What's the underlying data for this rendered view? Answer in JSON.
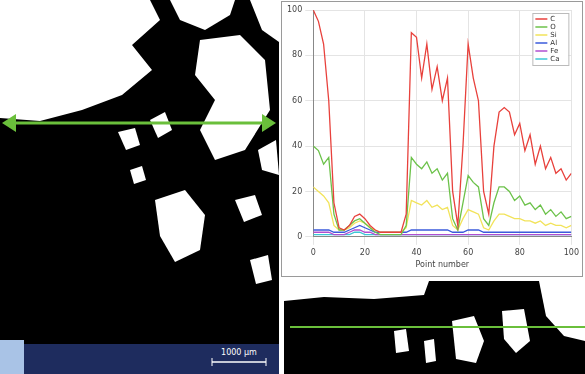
{
  "chart_data": {
    "type": "line",
    "xlabel": "Point number",
    "x": [
      0,
      2,
      4,
      6,
      8,
      10,
      12,
      14,
      16,
      18,
      20,
      22,
      24,
      26,
      28,
      30,
      32,
      34,
      36,
      38,
      40,
      42,
      44,
      46,
      48,
      50,
      52,
      54,
      56,
      58,
      60,
      62,
      64,
      66,
      68,
      70,
      72,
      74,
      76,
      78,
      80,
      82,
      84,
      86,
      88,
      90,
      92,
      94,
      96,
      98,
      100
    ],
    "series": [
      {
        "name": "C",
        "color": "#e8413c",
        "values": [
          100,
          95,
          85,
          60,
          15,
          4,
          3,
          5,
          9,
          10,
          8,
          5,
          3,
          2,
          2,
          2,
          2,
          2,
          10,
          90,
          88,
          70,
          85,
          65,
          75,
          60,
          70,
          20,
          5,
          40,
          85,
          70,
          60,
          20,
          10,
          40,
          55,
          57,
          55,
          45,
          50,
          38,
          45,
          32,
          40,
          30,
          35,
          28,
          30,
          25,
          28
        ]
      },
      {
        "name": "O",
        "color": "#6cc24a",
        "values": [
          40,
          38,
          32,
          35,
          10,
          3,
          3,
          5,
          7,
          8,
          6,
          4,
          2,
          1,
          1,
          1,
          1,
          1,
          5,
          35,
          32,
          30,
          33,
          28,
          30,
          25,
          28,
          8,
          3,
          15,
          27,
          24,
          22,
          8,
          5,
          15,
          22,
          22,
          20,
          16,
          18,
          14,
          15,
          12,
          14,
          10,
          12,
          9,
          11,
          8,
          9
        ]
      },
      {
        "name": "Si",
        "color": "#f2e35a",
        "values": [
          22,
          20,
          18,
          15,
          5,
          3,
          3,
          4,
          6,
          7,
          6,
          4,
          3,
          2,
          2,
          2,
          2,
          2,
          4,
          16,
          15,
          14,
          16,
          13,
          14,
          12,
          13,
          5,
          3,
          8,
          12,
          11,
          10,
          4,
          3,
          7,
          10,
          10,
          9,
          8,
          8,
          7,
          7,
          6,
          7,
          5,
          6,
          5,
          5,
          4,
          5
        ]
      },
      {
        "name": "Al",
        "color": "#3b5bdb",
        "values": [
          3,
          3,
          3,
          3,
          2,
          2,
          2,
          3,
          4,
          5,
          4,
          3,
          2,
          2,
          2,
          2,
          2,
          2,
          2,
          3,
          3,
          3,
          3,
          3,
          3,
          3,
          3,
          2,
          2,
          2,
          3,
          3,
          3,
          2,
          2,
          2,
          2,
          2,
          2,
          2,
          2,
          2,
          2,
          2,
          2,
          2,
          2,
          2,
          2,
          2,
          2
        ]
      },
      {
        "name": "Fe",
        "color": "#b04fd0",
        "values": [
          2,
          2,
          2,
          2,
          1,
          1,
          1,
          2,
          3,
          3,
          2,
          2,
          1,
          1,
          1,
          1,
          1,
          1,
          1,
          1,
          1,
          1,
          1,
          1,
          1,
          1,
          1,
          1,
          1,
          1,
          1,
          1,
          1,
          1,
          1,
          1,
          1,
          1,
          1,
          1,
          1,
          1,
          1,
          1,
          1,
          1,
          1,
          1,
          1,
          1,
          1
        ]
      },
      {
        "name": "Ca",
        "color": "#3cc7d6",
        "values": [
          1,
          1,
          1,
          1,
          1,
          1,
          1,
          1,
          2,
          2,
          1,
          1,
          1,
          1,
          1,
          1,
          1,
          1,
          1,
          1,
          1,
          1,
          1,
          1,
          1,
          1,
          1,
          1,
          1,
          1,
          1,
          1,
          1,
          1,
          1,
          1,
          1,
          1,
          1,
          1,
          1,
          1,
          1,
          1,
          1,
          1,
          1,
          1,
          1,
          1,
          1
        ]
      }
    ],
    "xlim": [
      0,
      100
    ],
    "xticks": [
      0,
      20,
      40,
      60,
      80,
      100
    ],
    "ylim": [
      0,
      100
    ],
    "yticks": [
      0,
      20,
      40,
      60,
      80,
      100
    ],
    "grid": true,
    "legend": "upper right"
  },
  "micrograph": {
    "scale_bar_label": "1000 μm"
  }
}
